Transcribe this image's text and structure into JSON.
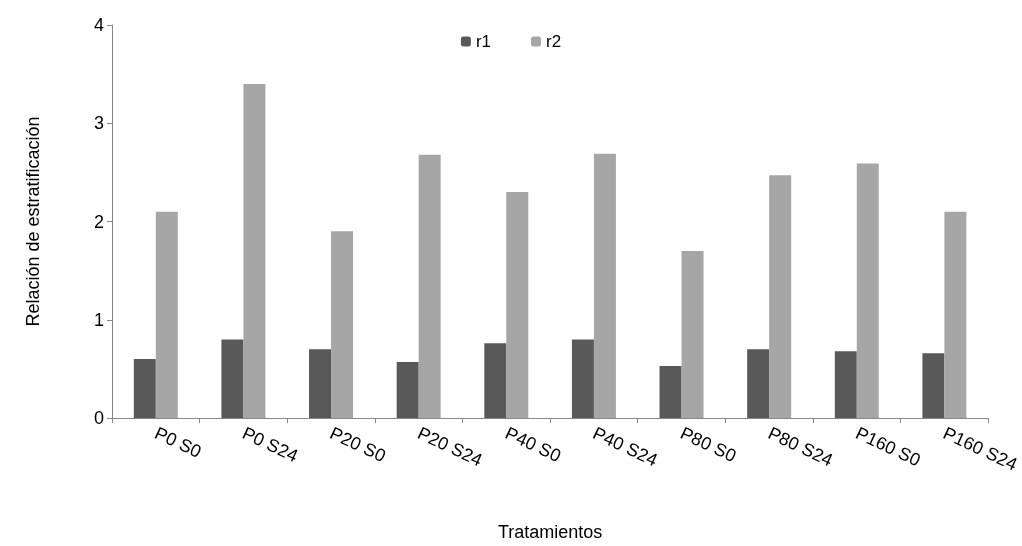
{
  "chart_data": {
    "type": "bar",
    "xlabel": "Tratamientos",
    "ylabel": "Relación de estratificación",
    "categories": [
      "P0 S0",
      "P0 S24",
      "P20 S0",
      "P20 S24",
      "P40 S0",
      "P40 S24",
      "P80 S0",
      "P80 S24",
      "P160 S0",
      "P160 S24"
    ],
    "series": [
      {
        "name": "r1",
        "color": "#595959",
        "values": [
          0.6,
          0.8,
          0.7,
          0.57,
          0.76,
          0.8,
          0.53,
          0.7,
          0.68,
          0.66
        ]
      },
      {
        "name": "r2",
        "color": "#a6a6a6",
        "values": [
          2.1,
          3.4,
          1.9,
          2.68,
          2.3,
          2.69,
          1.7,
          2.47,
          2.59,
          2.1
        ]
      }
    ],
    "ylim": [
      0,
      4
    ],
    "yticks": [
      0,
      1,
      2,
      3,
      4
    ],
    "grid": false,
    "legend": "top"
  }
}
